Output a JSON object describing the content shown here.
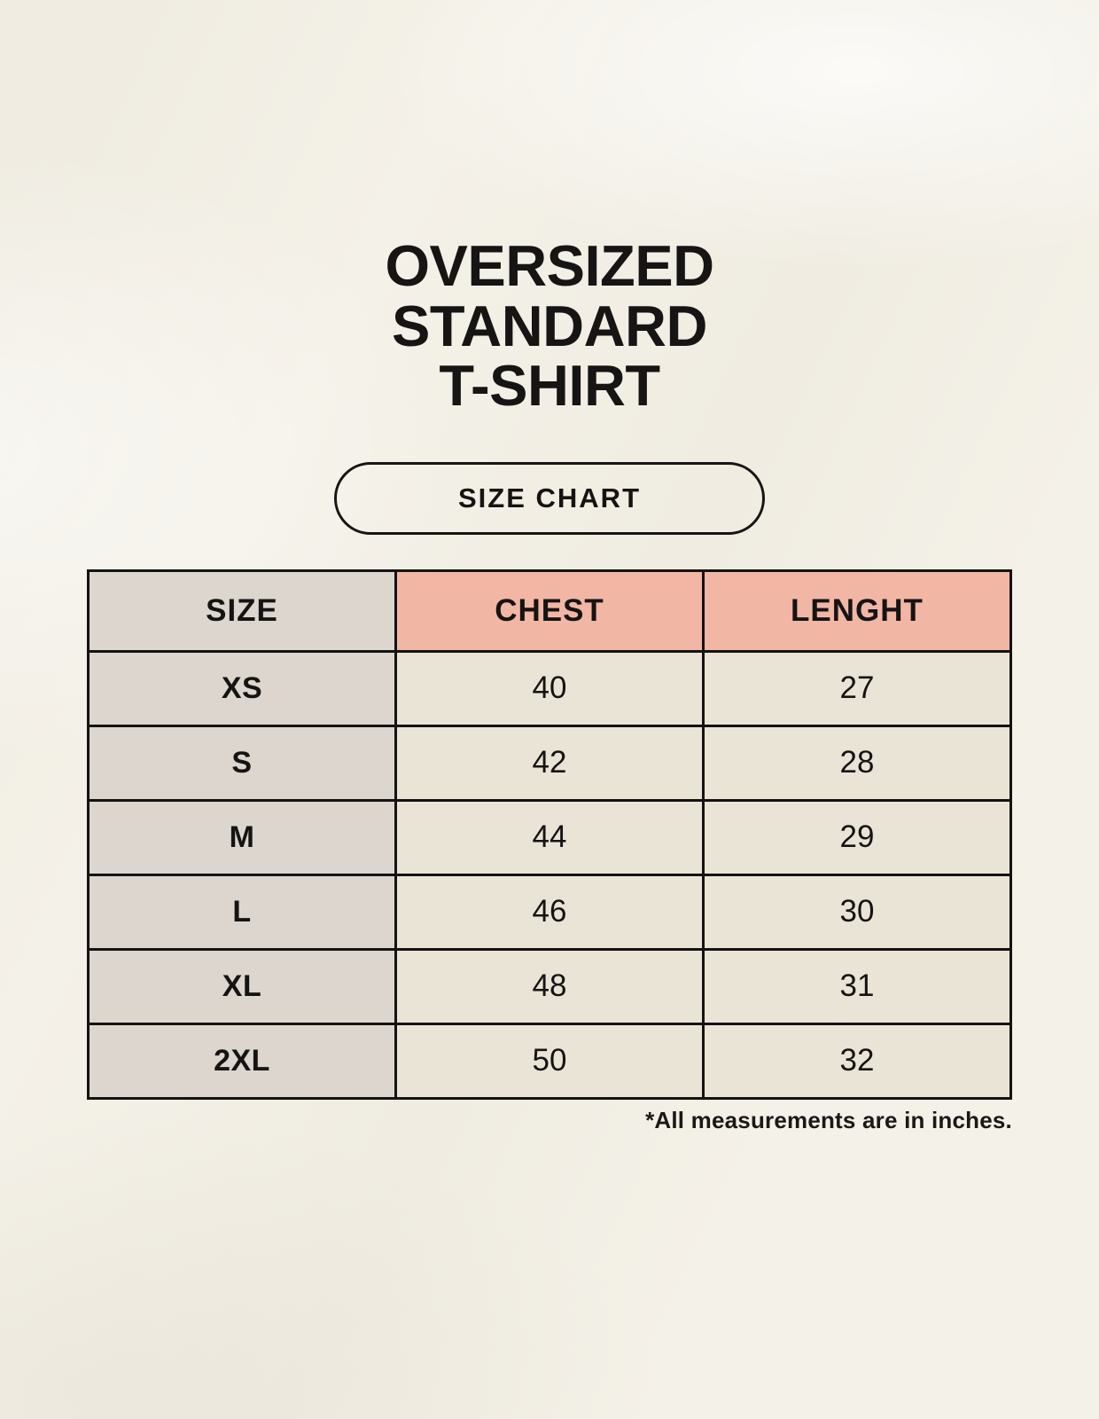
{
  "header": {
    "title_lines": [
      "OVERSIZED",
      "STANDARD",
      "T-SHIRT"
    ],
    "badge_label": "SIZE CHART"
  },
  "chart_data": {
    "type": "table",
    "title": "OVERSIZED STANDARD T-SHIRT",
    "subtitle": "SIZE CHART",
    "columns": [
      "SIZE",
      "CHEST",
      "LENGHT"
    ],
    "rows": [
      [
        "XS",
        "40",
        "27"
      ],
      [
        "S",
        "42",
        "28"
      ],
      [
        "M",
        "44",
        "29"
      ],
      [
        "L",
        "46",
        "30"
      ],
      [
        "XL",
        "48",
        "31"
      ],
      [
        "2XL",
        "50",
        "32"
      ]
    ],
    "units_note": "*All measurements are in inches."
  },
  "colors": {
    "background": "#f4f1e8",
    "header_pink": "#f2b6a5",
    "header_gray": "#dcd6cf",
    "cell_cream": "#eae4d7",
    "border": "#141312"
  }
}
